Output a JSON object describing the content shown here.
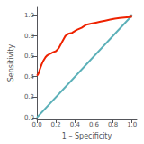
{
  "chart_data": {
    "type": "line",
    "xlabel": "1 – Specificity",
    "ylabel": "Sensitivity",
    "series": [
      {
        "x": [
          0.0,
          1.0
        ],
        "values": [
          0.0,
          1.0
        ],
        "color": "#5bb0b8"
      },
      {
        "x": [
          0.0,
          0.01,
          0.02,
          0.03,
          0.05,
          0.07,
          0.09,
          0.11,
          0.13,
          0.15,
          0.17,
          0.2,
          0.23,
          0.27,
          0.3,
          0.33,
          0.37,
          0.42,
          0.47,
          0.52,
          0.57,
          0.62,
          0.67,
          0.72,
          0.77,
          0.82,
          0.87,
          0.92,
          0.97,
          1.0
        ],
        "values": [
          0.41,
          0.42,
          0.44,
          0.47,
          0.52,
          0.56,
          0.59,
          0.61,
          0.62,
          0.63,
          0.64,
          0.65,
          0.68,
          0.75,
          0.8,
          0.82,
          0.83,
          0.86,
          0.88,
          0.91,
          0.92,
          0.93,
          0.94,
          0.95,
          0.96,
          0.97,
          0.975,
          0.98,
          0.985,
          0.99
        ],
        "color": "#ee2200"
      }
    ],
    "xlim": [
      0.0,
      1.05
    ],
    "ylim": [
      -0.01,
      1.08
    ],
    "xticks": [
      {
        "value": 0.0,
        "label": "0.0"
      },
      0.2,
      0.4,
      0.6,
      0.8,
      {
        "value": 1.0,
        "label": "1.0"
      }
    ],
    "yticks": [
      {
        "value": 0.0,
        "label": "0.0"
      },
      0.2,
      0.4,
      0.6,
      0.8,
      {
        "value": 1.0,
        "label": "1.0"
      }
    ],
    "grid": false
  }
}
